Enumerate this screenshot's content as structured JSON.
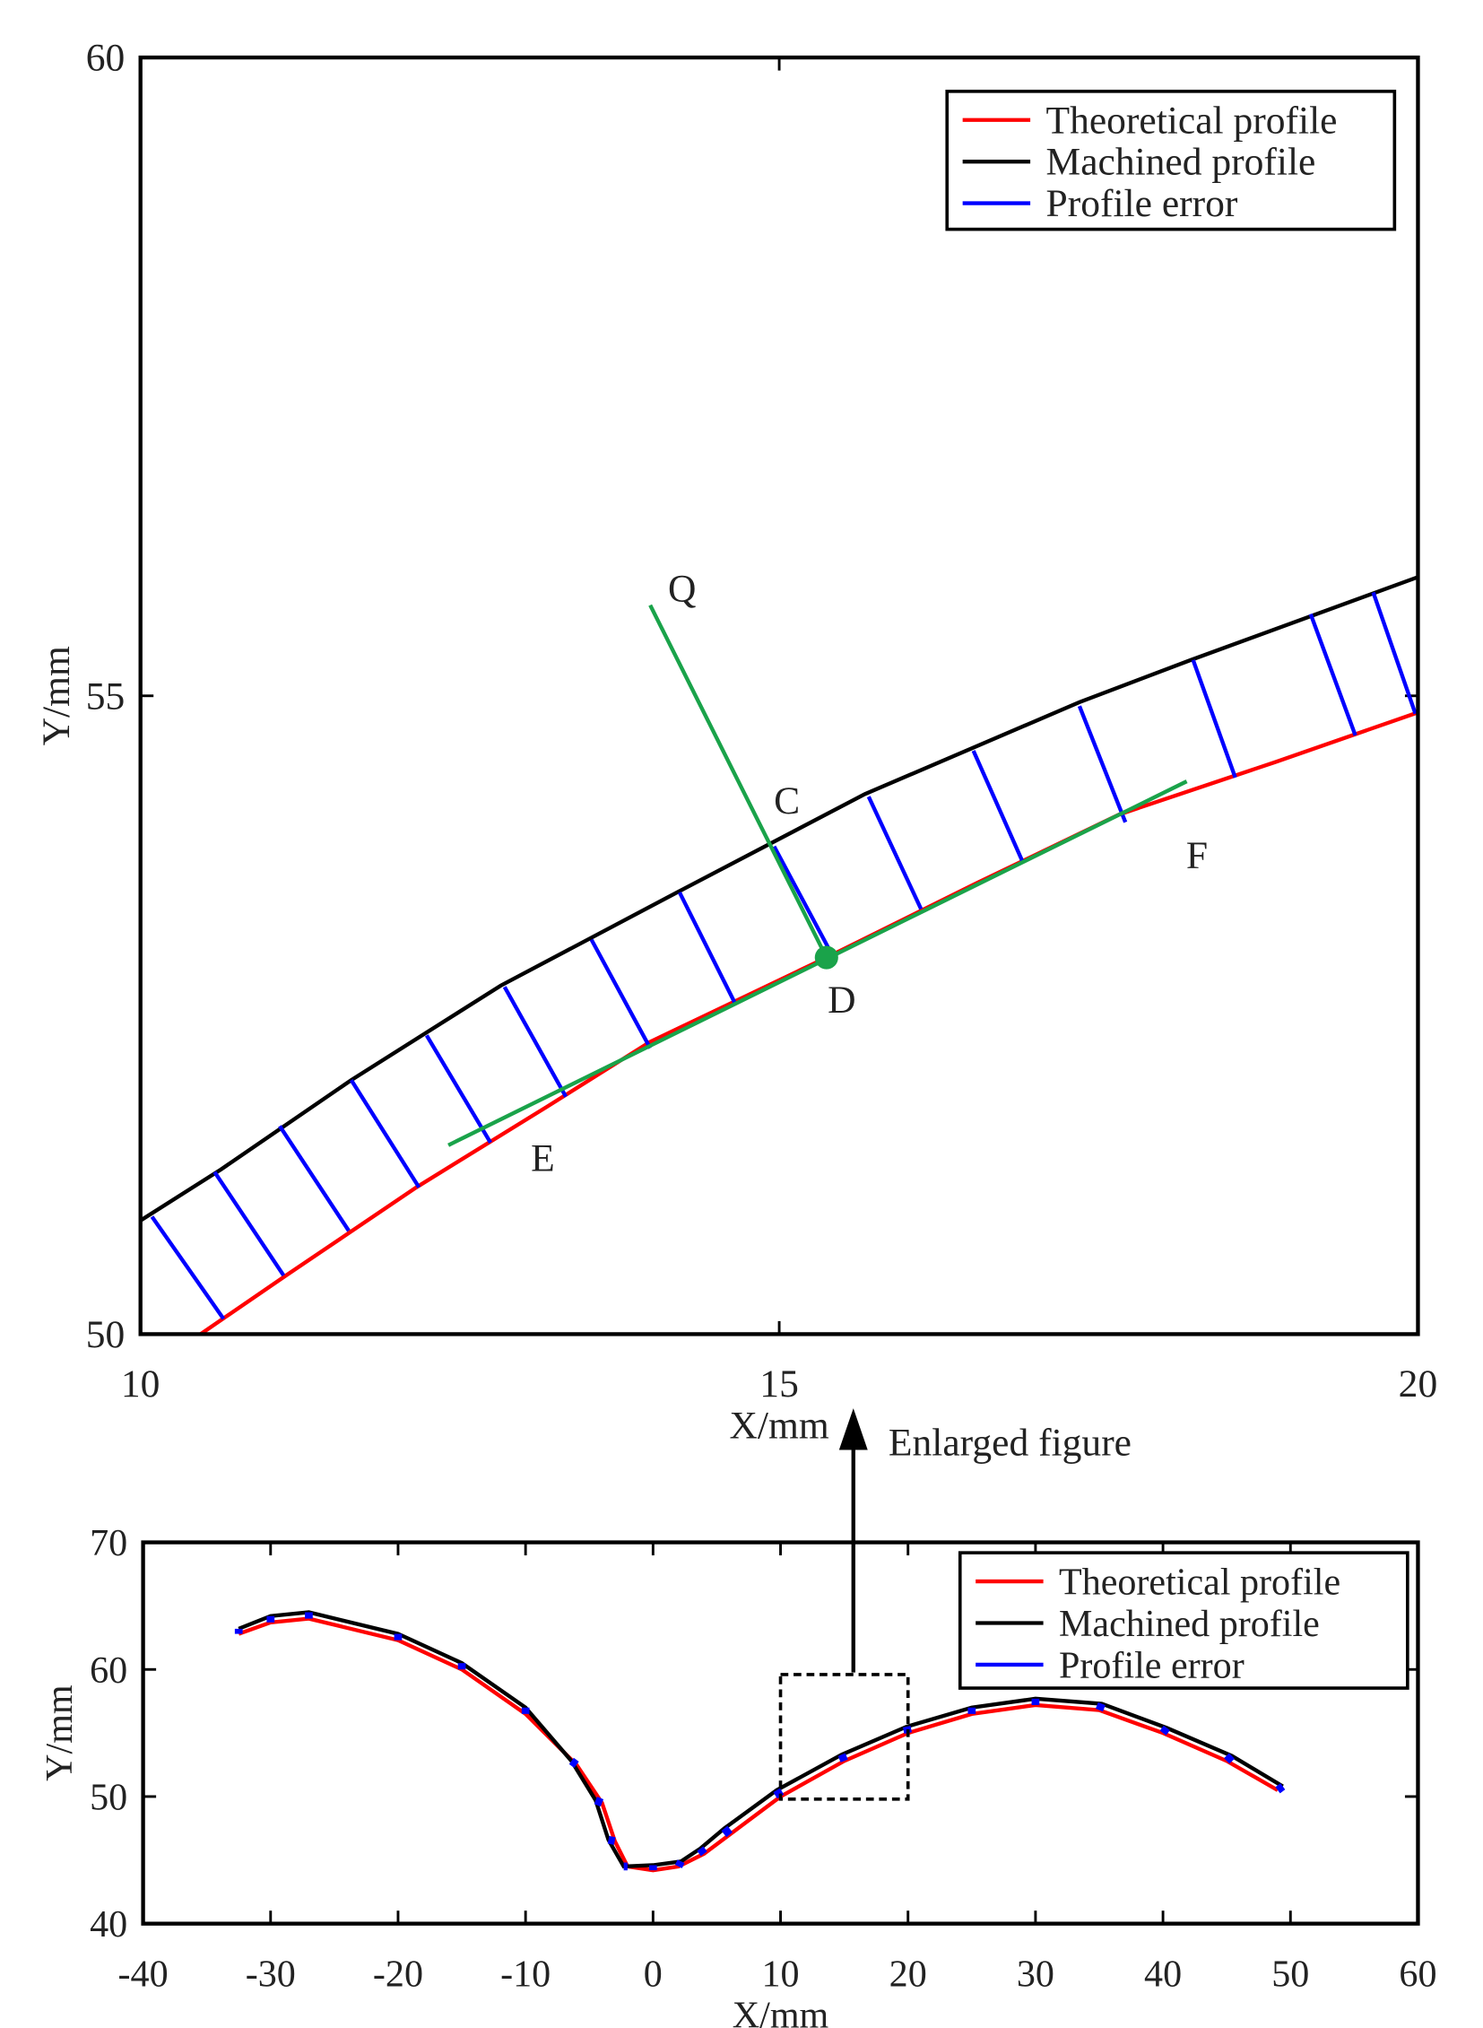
{
  "arrow_label": "Enlarged figure",
  "chart_data": [
    {
      "type": "line",
      "xlabel": "X/mm",
      "ylabel": "Y/mm",
      "xlim": [
        10,
        20
      ],
      "ylim": [
        50,
        60
      ],
      "xticks": [
        10,
        15,
        20
      ],
      "yticks": [
        50,
        55,
        60
      ],
      "legend": "upper right",
      "series": [
        {
          "name": "Theoretical profile",
          "color": "#ff0000",
          "x": [
            10.47,
            11.14,
            12.16,
            13.18,
            13.99,
            15.37,
            16.54,
            17.66,
            18.88,
            20
          ],
          "values": [
            50.0,
            50.46,
            51.15,
            51.78,
            52.29,
            52.95,
            53.53,
            54.07,
            54.48,
            54.87
          ]
        },
        {
          "name": "Machined profile",
          "color": "#000000",
          "x": [
            10,
            10.63,
            11.65,
            12.82,
            14.2,
            15.67,
            17.35,
            18.22,
            20
          ],
          "values": [
            50.89,
            51.29,
            51.99,
            52.73,
            53.46,
            54.23,
            54.95,
            55.28,
            55.93
          ]
        },
        {
          "name": "Profile error",
          "color": "#0000ff",
          "style": "segments",
          "x": [
            10.09,
            10.58,
            11.09,
            11.65,
            12.24,
            12.85,
            13.53,
            14.22,
            14.96,
            15.7,
            16.52,
            17.35,
            18.24,
            19.16,
            19.65
          ],
          "values": [
            50.92,
            51.27,
            51.63,
            51.99,
            52.34,
            52.72,
            53.09,
            53.46,
            53.82,
            54.21,
            54.57,
            54.92,
            55.28,
            55.64,
            55.81
          ],
          "x_end": [
            10.65,
            11.12,
            11.63,
            12.18,
            12.74,
            13.33,
            13.99,
            14.65,
            15.42,
            16.11,
            16.91,
            17.71,
            18.57,
            19.51,
            19.98
          ],
          "values_end": [
            50.12,
            50.46,
            50.81,
            51.15,
            51.5,
            51.86,
            52.24,
            52.6,
            52.96,
            53.33,
            53.69,
            54.01,
            54.36,
            54.69,
            54.86
          ]
        }
      ],
      "annotation_lines": [
        {
          "color": "#1aa34a",
          "x": [
            13.99,
            15.37
          ],
          "y": [
            55.71,
            52.95
          ]
        },
        {
          "color": "#1aa34a",
          "x": [
            12.41,
            18.19
          ],
          "y": [
            51.48,
            54.33
          ]
        }
      ],
      "annotation_points": [
        {
          "color": "#1aa34a",
          "x": 15.37,
          "y": 52.95
        }
      ],
      "annotations": [
        {
          "text": "Q",
          "x": 14.24,
          "y": 55.84
        },
        {
          "text": "C",
          "x": 15.06,
          "y": 54.18
        },
        {
          "text": "D",
          "x": 15.49,
          "y": 52.62
        },
        {
          "text": "E",
          "x": 13.15,
          "y": 51.38
        },
        {
          "text": "F",
          "x": 18.27,
          "y": 53.75
        }
      ]
    },
    {
      "type": "line",
      "xlabel": "X/mm",
      "ylabel": "Y/mm",
      "xlim": [
        -40,
        60
      ],
      "ylim": [
        40,
        70
      ],
      "xticks": [
        -40,
        -30,
        -20,
        -10,
        0,
        10,
        20,
        30,
        40,
        50,
        60
      ],
      "yticks": [
        40,
        50,
        60,
        70
      ],
      "legend": "upper right",
      "series": [
        {
          "name": "Theoretical profile",
          "color": "#ff0000",
          "x": [
            -32.5,
            -30,
            -27,
            -20,
            -15,
            -10,
            -6,
            -4,
            -3,
            -2,
            0,
            2,
            4,
            6,
            10,
            15,
            20,
            25,
            30,
            35,
            40,
            45,
            49
          ],
          "values": [
            62.8,
            63.7,
            64,
            62.3,
            60,
            56.5,
            52.5,
            49.5,
            46.5,
            44.5,
            44.2,
            44.5,
            45.5,
            47,
            50,
            52.8,
            55,
            56.5,
            57.2,
            56.8,
            55,
            52.8,
            50.5
          ]
        },
        {
          "name": "Machined profile",
          "color": "#000000",
          "x": [
            -32.5,
            -30,
            -27,
            -20,
            -15,
            -10,
            -6.4,
            -4.5,
            -3.5,
            -2.3,
            0,
            2.2,
            3.7,
            5.6,
            9.7,
            14.8,
            19.9,
            25,
            30,
            35.2,
            40.3,
            45.4,
            49.4
          ],
          "values": [
            63.2,
            64.2,
            64.5,
            62.8,
            60.5,
            57,
            52.8,
            49.7,
            46.6,
            44.5,
            44.6,
            44.9,
            45.9,
            47.5,
            50.5,
            53.3,
            55.5,
            57,
            57.7,
            57.3,
            55.4,
            53.2,
            50.8
          ]
        },
        {
          "name": "Profile error",
          "color": "#0000ff",
          "style": "segments",
          "x": [
            -32.5,
            -30,
            -27,
            -20,
            -15,
            -10,
            -6.4,
            -4.5,
            -3.5,
            -2.3,
            0,
            2.2,
            3.7,
            5.6,
            9.7,
            14.8,
            19.9,
            25,
            30,
            35.2,
            40.3,
            45.4,
            49.4
          ],
          "values": [
            63.2,
            64.2,
            64.5,
            62.8,
            60.5,
            57,
            52.8,
            49.7,
            46.6,
            44.5,
            44.6,
            44.9,
            45.9,
            47.5,
            50.5,
            53.3,
            55.5,
            57,
            57.7,
            57.3,
            55.4,
            53.2,
            50.8
          ],
          "x_end": [
            -32.5,
            -30,
            -27,
            -20,
            -15,
            -10,
            -6,
            -4,
            -3,
            -2,
            0,
            2,
            4,
            6,
            10,
            15,
            20,
            25,
            30,
            35,
            40,
            45,
            49
          ],
          "values_end": [
            62.8,
            63.7,
            64,
            62.3,
            60,
            56.5,
            52.5,
            49.5,
            46.5,
            44.5,
            44.2,
            44.5,
            45.5,
            47,
            50,
            52.8,
            55,
            56.5,
            57.2,
            56.8,
            55,
            52.8,
            50.5
          ]
        }
      ],
      "zoom_box": {
        "x": [
          10,
          20
        ],
        "y": [
          49.8,
          59.6
        ]
      }
    }
  ]
}
